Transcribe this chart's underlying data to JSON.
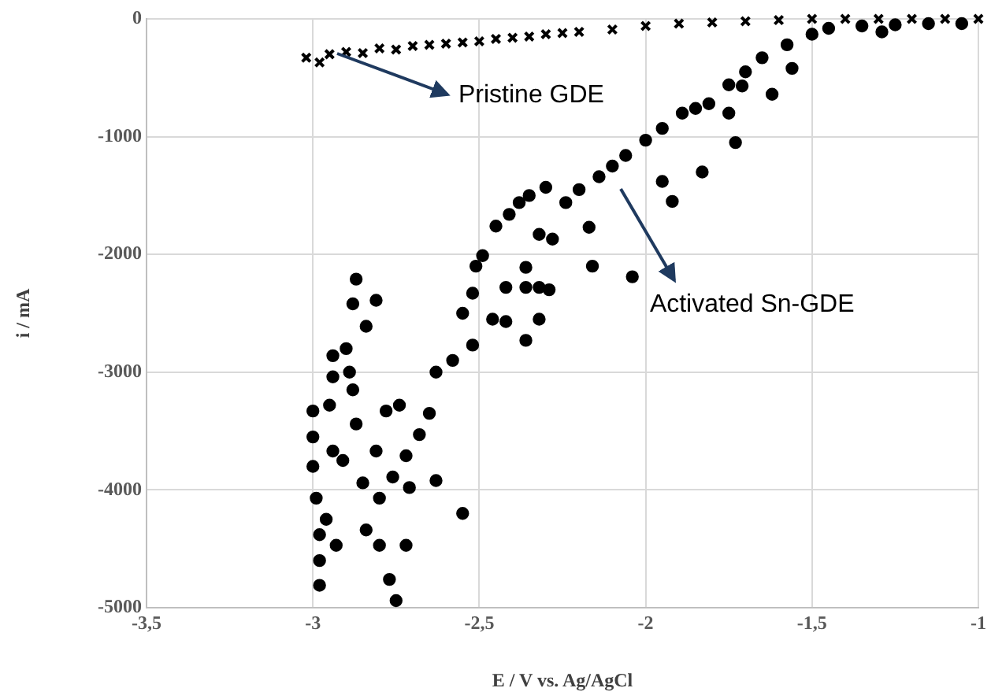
{
  "chart_data": {
    "type": "scatter",
    "xlabel": "E / V vs. Ag/AgCl",
    "ylabel": "i / mA",
    "xlim": [
      -3.5,
      -1
    ],
    "xticks": [
      {
        "value": -3.5,
        "label": "-3,5"
      },
      {
        "value": -3,
        "label": "-3"
      },
      {
        "value": -2.5,
        "label": "-2,5"
      },
      {
        "value": -2,
        "label": "-2"
      },
      {
        "value": -1.5,
        "label": "-1,5"
      },
      {
        "value": -1,
        "label": "-1"
      }
    ],
    "ylim": [
      -5000,
      0
    ],
    "yticks": [
      -5000,
      -4000,
      -3000,
      -2000,
      -1000,
      0
    ],
    "grid": true,
    "series": [
      {
        "name": "Pristine GDE",
        "marker": "cross",
        "color": "#000000",
        "x": [
          -3.02,
          -2.98,
          -2.95,
          -2.9,
          -2.85,
          -2.8,
          -2.75,
          -2.7,
          -2.65,
          -2.6,
          -2.55,
          -2.5,
          -2.45,
          -2.4,
          -2.35,
          -2.3,
          -2.25,
          -2.2,
          -2.1,
          -2.0,
          -1.9,
          -1.8,
          -1.7,
          -1.6,
          -1.5,
          -1.4,
          -1.3,
          -1.2,
          -1.1,
          -1.0
        ],
        "values": [
          -330,
          -370,
          -300,
          -280,
          -290,
          -250,
          -260,
          -230,
          -220,
          -210,
          -200,
          -190,
          -170,
          -160,
          -150,
          -130,
          -120,
          -110,
          -90,
          -60,
          -40,
          -30,
          -20,
          -10,
          0,
          0,
          0,
          0,
          0,
          0
        ]
      },
      {
        "name": "Activated Sn-GDE",
        "marker": "circle",
        "color": "#000000",
        "x": [
          -1.05,
          -1.15,
          -1.25,
          -1.35,
          -1.45,
          -1.5,
          -1.575,
          -1.65,
          -1.7,
          -1.75,
          -1.81,
          -1.85,
          -1.89,
          -1.95,
          -2.0,
          -2.06,
          -2.1,
          -2.14,
          -2.2,
          -2.24,
          -2.32,
          -2.38,
          -2.49,
          -2.52,
          -2.55,
          -2.58,
          -2.63,
          -2.65,
          -2.68,
          -2.72,
          -2.76,
          -2.8,
          -2.85,
          -2.91,
          -2.94,
          -2.99,
          -2.98,
          -2.98,
          -2.98,
          -3.0,
          -3.0,
          -3.0,
          -2.95,
          -2.94,
          -2.94,
          -2.9,
          -2.89,
          -2.88,
          -2.87,
          -2.88,
          -2.81,
          -2.84,
          -2.87,
          -2.78,
          -2.74,
          -2.81,
          -2.84,
          -2.8,
          -2.77,
          -2.75,
          -2.72,
          -2.71,
          -2.63,
          -2.55,
          -2.93,
          -2.96,
          -2.3,
          -2.35,
          -2.41,
          -2.45,
          -2.51,
          -2.52,
          -2.46,
          -2.42,
          -2.36,
          -2.32,
          -2.42,
          -2.36,
          -2.29,
          -2.36,
          -2.16,
          -2.04,
          -2.17,
          -2.28,
          -2.32,
          -1.95,
          -1.92,
          -1.83,
          -1.73,
          -1.75,
          -1.62,
          -1.56,
          -1.71,
          -1.29
        ],
        "values": [
          -40,
          -40,
          -50,
          -60,
          -80,
          -130,
          -220,
          -330,
          -450,
          -560,
          -720,
          -760,
          -800,
          -930,
          -1030,
          -1160,
          -1250,
          -1340,
          -1450,
          -1560,
          -1830,
          -1560,
          -2010,
          -2330,
          -2500,
          -2900,
          -3000,
          -3350,
          -3530,
          -3710,
          -3890,
          -4070,
          -3940,
          -3750,
          -3670,
          -4070,
          -4380,
          -4600,
          -4810,
          -3800,
          -3550,
          -3330,
          -3280,
          -3040,
          -2860,
          -2800,
          -3000,
          -3150,
          -2210,
          -2420,
          -2390,
          -2610,
          -3440,
          -3330,
          -3280,
          -3670,
          -4340,
          -4470,
          -4760,
          -4940,
          -4470,
          -3980,
          -3920,
          -4200,
          -4470,
          -4250,
          -1430,
          -1500,
          -1660,
          -1760,
          -2100,
          -2770,
          -2550,
          -2570,
          -2730,
          -2550,
          -2280,
          -2280,
          -2300,
          -2110,
          -2100,
          -2190,
          -1770,
          -1870,
          -2280,
          -1380,
          -1550,
          -1300,
          -1050,
          -800,
          -640,
          -420,
          -570,
          -110
        ]
      }
    ]
  }
}
